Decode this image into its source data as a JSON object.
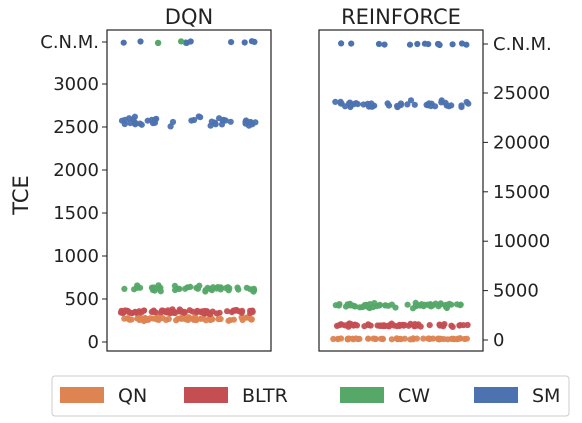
{
  "chart_data": [
    {
      "type": "scatter",
      "title": "DQN",
      "ylabel": "TCE",
      "yticks": [
        "0",
        "500",
        "1000",
        "1500",
        "2000",
        "2500",
        "3000",
        "C.N.M."
      ],
      "ylim": [
        0,
        3500
      ],
      "categorical_top_value": "C.N.M.",
      "series": [
        {
          "name": "QN",
          "color": "#dd8452",
          "center": 270,
          "spread": 30,
          "points": 70,
          "cnm_points": 0
        },
        {
          "name": "BLTR",
          "color": "#c44e52",
          "center": 355,
          "spread": 35,
          "points": 70,
          "cnm_points": 0
        },
        {
          "name": "CW",
          "color": "#55a868",
          "center": 625,
          "spread": 50,
          "points": 45,
          "cnm_points": 5
        },
        {
          "name": "SM",
          "color": "#4c72b0",
          "center": 2560,
          "spread": 80,
          "points": 42,
          "cnm_points": 8
        }
      ]
    },
    {
      "type": "scatter",
      "title": "REINFORCE",
      "yticks": [
        "0",
        "5000",
        "10000",
        "15000",
        "20000",
        "25000",
        "C.N.M."
      ],
      "ylim": [
        0,
        30000
      ],
      "categorical_top_value": "C.N.M.",
      "series": [
        {
          "name": "QN",
          "color": "#dd8452",
          "center": 120,
          "spread": 80,
          "points": 60,
          "cnm_points": 0
        },
        {
          "name": "BLTR",
          "color": "#c44e52",
          "center": 1500,
          "spread": 250,
          "points": 60,
          "cnm_points": 0
        },
        {
          "name": "CW",
          "color": "#55a868",
          "center": 3500,
          "spread": 350,
          "points": 60,
          "cnm_points": 0
        },
        {
          "name": "SM",
          "color": "#4c72b0",
          "center": 23900,
          "spread": 600,
          "points": 45,
          "cnm_points": 15
        }
      ]
    }
  ],
  "legend": [
    {
      "label": "QN",
      "color": "#dd8452"
    },
    {
      "label": "BLTR",
      "color": "#c44e52"
    },
    {
      "label": "CW",
      "color": "#55a868"
    },
    {
      "label": "SM",
      "color": "#4c72b0"
    }
  ]
}
